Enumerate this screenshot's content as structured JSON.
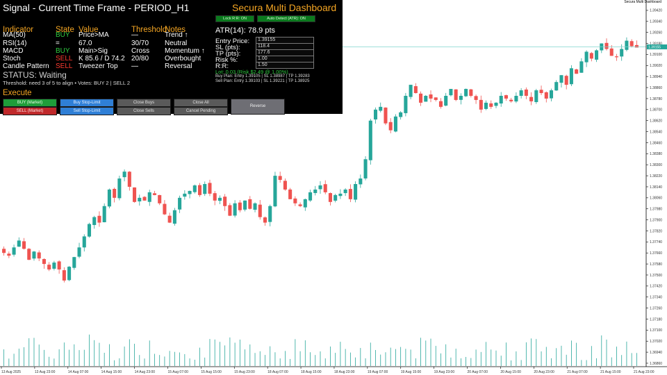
{
  "panel": {
    "title": "Signal - Current Time Frame - PERIOD_H1",
    "brand": "Secura Multi Dashboard",
    "top_buttons": [
      "Lock R:R: ON",
      "Auto Detect (ATR): ON"
    ],
    "headers": {
      "indicator": "Indicator",
      "state": "State",
      "value": "Value",
      "threshold": "Threshold",
      "notes": "Notes"
    },
    "rows": [
      {
        "indicator": "MA(50)",
        "state": "BUY",
        "state_color": "green",
        "value": "Price>MA",
        "threshold": "—",
        "notes": "Trend ↑"
      },
      {
        "indicator": "RSI(14)",
        "state": "=",
        "state_color": "white",
        "value": "67.0",
        "threshold": "30/70",
        "notes": "Neutral"
      },
      {
        "indicator": "MACD",
        "state": "BUY",
        "state_color": "green",
        "value": "Main>Sig",
        "threshold": "Cross",
        "notes": "Momentum ↑"
      },
      {
        "indicator": "Stoch",
        "state": "SELL",
        "state_color": "red",
        "value": "K 85.6 / D 74.2",
        "threshold": "20/80",
        "notes": "Overbought"
      },
      {
        "indicator": "Candle Pattern",
        "state": "SELL",
        "state_color": "red",
        "value": "Tweezer Top",
        "threshold": "—",
        "notes": "Reversal"
      }
    ],
    "status": "STATUS: Waiting",
    "threshold_line": "Threshold: need 3 of 5 to align   •   Votes: BUY 2 | SELL 2",
    "execute": "Execute",
    "buttons": {
      "buy_market": "BUY (Market)",
      "buy_stop_limit": "Buy Stop-Limit",
      "close_buys": "Close Buys",
      "close_all": "Close All",
      "sell_market": "SELL (Market)",
      "sell_stop_limit": "Sell Stop-Limit",
      "close_sells": "Close Sells",
      "cancel_pending": "Cancel Pending",
      "reverse": "Reverse"
    },
    "atr": "ATR(14): 78.9 pts",
    "fields": [
      {
        "label": "Entry Price:",
        "value": "1.39155"
      },
      {
        "label": "SL (pts):",
        "value": "118.4"
      },
      {
        "label": "TP (pts):",
        "value": "177.6"
      },
      {
        "label": "Risk %:",
        "value": "1.00"
      },
      {
        "label": "R:R:",
        "value": "1.50"
      }
    ],
    "lot_line": "Lot: 0.03   (Risk $2.49 @ 1.00%)",
    "buy_plan": "Buy Plan: Entry 1.39105 | SL 1.38987 | TP 1.39283",
    "sell_plan": "Sell Plan: Entry 1.39103 | SL 1.39221 | TP 1.38925"
  },
  "corner_label": "Secura Multi Dashboard",
  "chart_data": {
    "type": "candlestick",
    "x_ticks": [
      "13 Aug 2025",
      "13 Aug 23:00",
      "14 Aug 07:00",
      "14 Aug 15:00",
      "14 Aug 23:00",
      "15 Aug 07:00",
      "15 Aug 15:00",
      "15 Aug 23:00",
      "18 Aug 07:00",
      "18 Aug 15:00",
      "18 Aug 23:00",
      "19 Aug 07:00",
      "19 Aug 15:00",
      "19 Aug 23:00",
      "20 Aug 07:00",
      "20 Aug 15:00",
      "20 Aug 23:00",
      "21 Aug 07:00",
      "21 Aug 15:00",
      "21 Aug 23:00"
    ],
    "y_ticks": [
      "1.39420",
      "1.39340",
      "1.39260",
      "1.39180",
      "1.39100",
      "1.39020",
      "1.38940",
      "1.38860",
      "1.38780",
      "1.38700",
      "1.38620",
      "1.38540",
      "1.38460",
      "1.38380",
      "1.38300",
      "1.38220",
      "1.38140",
      "1.38060",
      "1.37980",
      "1.37900",
      "1.37820",
      "1.37740",
      "1.37660",
      "1.37580",
      "1.37500",
      "1.37420",
      "1.37340",
      "1.37260",
      "1.37180",
      "1.37100",
      "1.37020",
      "1.36940",
      "1.36860"
    ],
    "y_range": [
      1.3686,
      1.3946
    ],
    "current_price": "1.39155",
    "colors": {
      "bull": "#26a69a",
      "bear": "#ef5350",
      "volume": "#26a69a",
      "price_line": "#7fd4cc"
    },
    "closes": [
      1.3766,
      1.3764,
      1.377,
      1.3775,
      1.3769,
      1.3761,
      1.3767,
      1.3762,
      1.3758,
      1.3754,
      1.3759,
      1.3754,
      1.3746,
      1.3756,
      1.3763,
      1.377,
      1.3778,
      1.3787,
      1.3792,
      1.3788,
      1.38,
      1.3812,
      1.3806,
      1.382,
      1.3825,
      1.3814,
      1.3803,
      1.3806,
      1.3804,
      1.381,
      1.3808,
      1.3802,
      1.3794,
      1.3788,
      1.3797,
      1.3806,
      1.3809,
      1.3811,
      1.3815,
      1.3808,
      1.3816,
      1.3809,
      1.3804,
      1.3806,
      1.38,
      1.3793,
      1.3802,
      1.3797,
      1.3804,
      1.3798,
      1.3802,
      1.3792,
      1.3788,
      1.38,
      1.3822,
      1.3819,
      1.3812,
      1.3805,
      1.3802,
      1.38,
      1.3805,
      1.381,
      1.3812,
      1.3815,
      1.381,
      1.3803,
      1.3808,
      1.3809,
      1.3812,
      1.3805,
      1.3816,
      1.382,
      1.3834,
      1.3862,
      1.387,
      1.3872,
      1.386,
      1.3855,
      1.3865,
      1.3868,
      1.388,
      1.3888,
      1.3882,
      1.3875,
      1.388,
      1.3878,
      1.3877,
      1.3872,
      1.388,
      1.3885,
      1.3877,
      1.388,
      1.3885,
      1.388,
      1.3877,
      1.387,
      1.3875,
      1.3872,
      1.3875,
      1.388,
      1.3878,
      1.3876,
      1.388,
      1.3884,
      1.388,
      1.3876,
      1.3884,
      1.3882,
      1.3878,
      1.3884,
      1.389,
      1.3895,
      1.3888,
      1.39,
      1.3896,
      1.3905,
      1.3912,
      1.3907,
      1.3913,
      1.3918,
      1.3914,
      1.3909,
      1.3908,
      1.3914,
      1.392,
      1.3916,
      1.3915
    ]
  }
}
